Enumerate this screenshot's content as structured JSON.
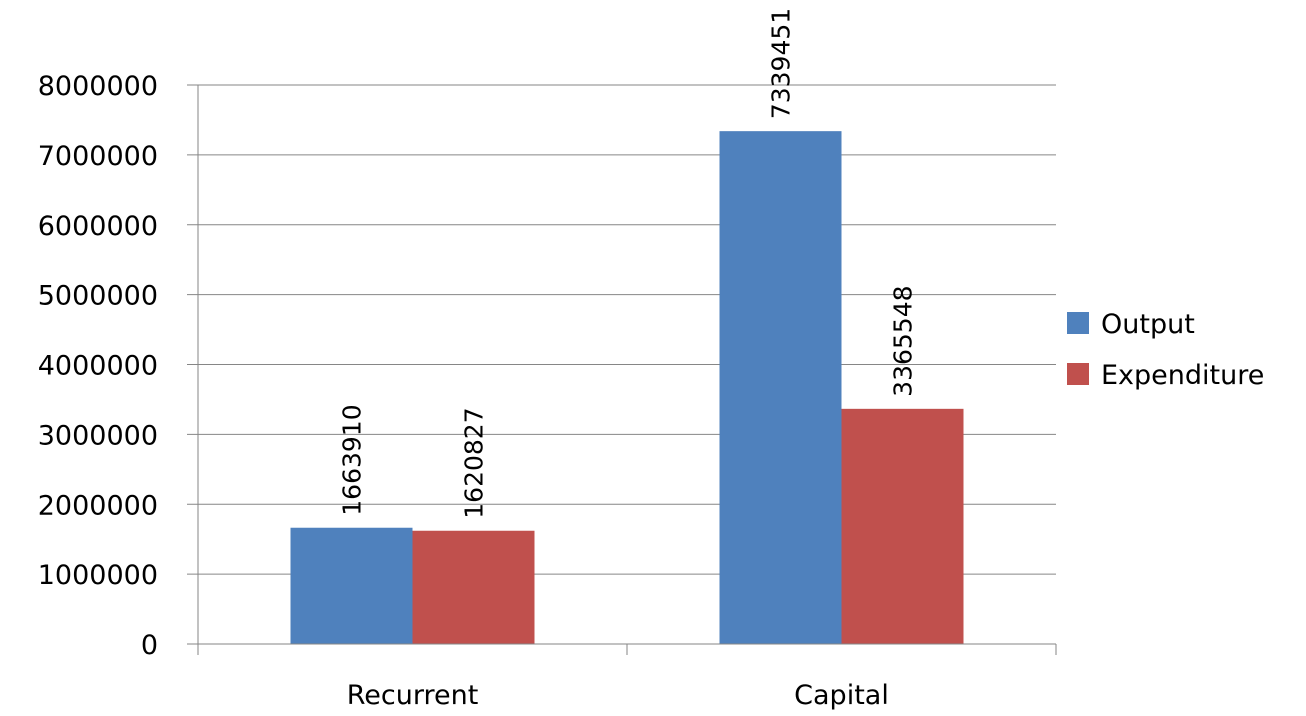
{
  "chart_data": {
    "type": "bar",
    "categories": [
      "Recurrent",
      "Capital"
    ],
    "series": [
      {
        "name": "Output",
        "values": [
          1663910,
          7339451
        ],
        "color": "#4F81BD"
      },
      {
        "name": "Expenditure",
        "values": [
          1620827,
          3365548
        ],
        "color": "#C0504D"
      }
    ],
    "ylim": [
      0,
      8000000
    ],
    "yticks": [
      0,
      1000000,
      2000000,
      3000000,
      4000000,
      5000000,
      6000000,
      7000000,
      8000000
    ],
    "title": "",
    "xlabel": "",
    "ylabel": "",
    "grid": true,
    "legend_position": "right"
  }
}
